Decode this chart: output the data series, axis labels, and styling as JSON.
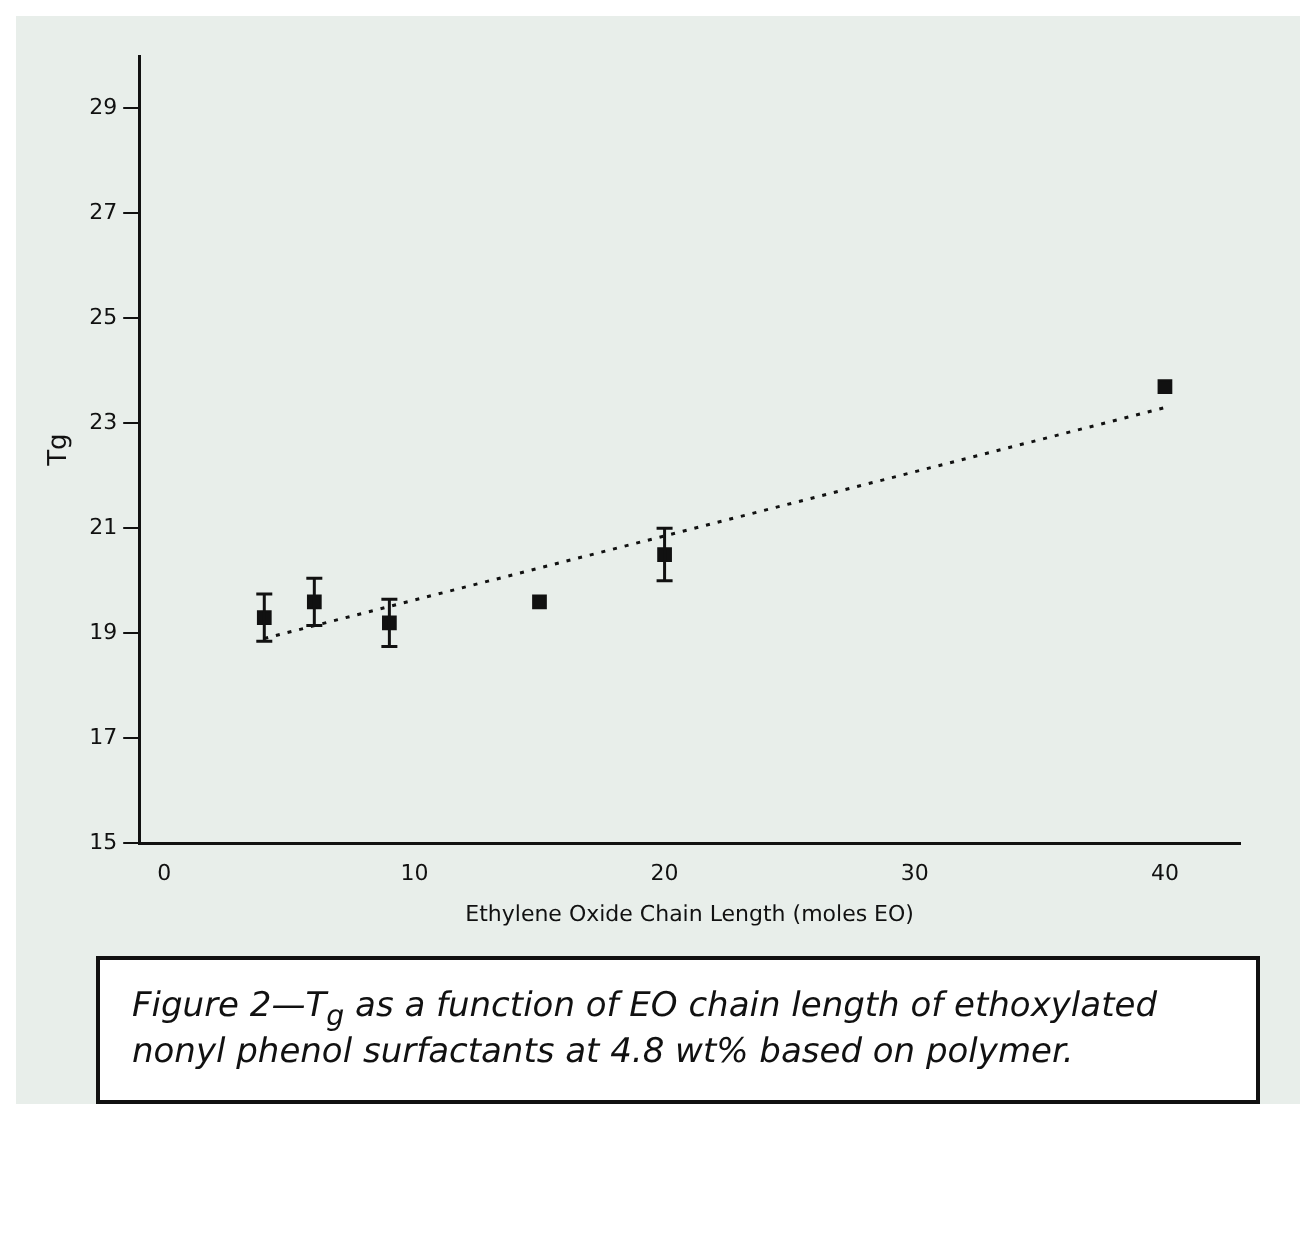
{
  "chart_data": {
    "type": "scatter",
    "xlabel": "Ethylene Oxide Chain Length (moles EO)",
    "ylabel": "Tg",
    "xlim": [
      -1,
      43
    ],
    "xticks": [
      0,
      10,
      20,
      30,
      40
    ],
    "ylim": [
      15,
      30
    ],
    "yticks": [
      15,
      17,
      19,
      21,
      23,
      25,
      27,
      29
    ],
    "grid": false,
    "legend": false,
    "marker": "square",
    "series": [
      {
        "color": "#111111",
        "x": [
          4,
          6,
          9,
          15,
          20,
          40
        ],
        "values": [
          19.3,
          19.6,
          19.2,
          19.6,
          20.5,
          23.7
        ],
        "errors": [
          0.45,
          0.45,
          0.45,
          null,
          0.5,
          null
        ]
      },
      {
        "type": "line",
        "color": "#111111",
        "x": [
          4,
          40
        ],
        "values": [
          18.9,
          23.3
        ],
        "line_style": "dotted",
        "marker": "none"
      }
    ],
    "annotations": [
      "Figure 2—T$_{g}$ as a function of EO chain length of ethoxylated nonyl phenol surfactants at 4.8 wt% based on polymer."
    ]
  }
}
